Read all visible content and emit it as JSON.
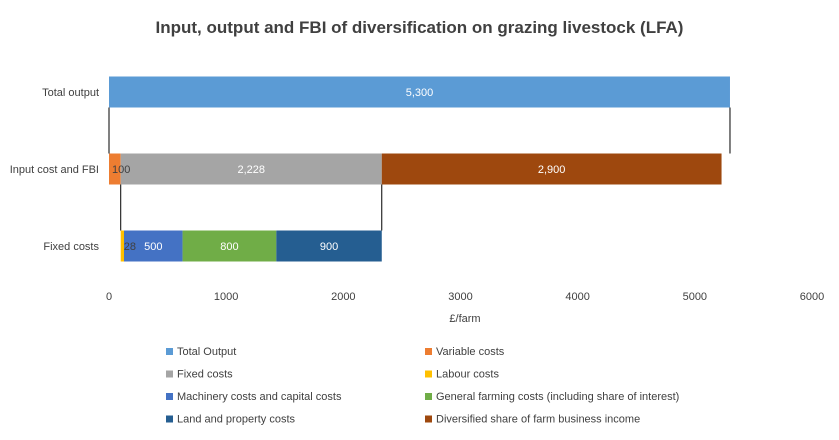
{
  "chart_data": {
    "type": "bar",
    "orientation": "horizontal",
    "stacked": true,
    "title": "Input, output and FBI of diversification on grazing livestock (LFA)",
    "xlabel": "£/farm",
    "ylabel": "",
    "xlim": [
      0,
      6000
    ],
    "xticks": [
      "0",
      "1000",
      "2000",
      "3000",
      "4000",
      "5000",
      "6000"
    ],
    "grid": false,
    "legend_position": "bottom",
    "categories": [
      "Total output",
      "Input cost and FBI",
      "Fixed costs"
    ],
    "bars": [
      {
        "category": "Total output",
        "segments": [
          {
            "series": "Total Output",
            "start": 0,
            "value": 5300,
            "label": "5,300",
            "color": "#5b9bd5",
            "label_color": "#ffffff"
          }
        ]
      },
      {
        "category": "Input cost and FBI",
        "segments": [
          {
            "series": "Variable costs",
            "start": 0,
            "value": 100,
            "label": "100",
            "color": "#ed7d31",
            "label_color": "#404040"
          },
          {
            "series": "Fixed costs",
            "start": 100,
            "value": 2228,
            "label": "2,228",
            "color": "#a5a5a5",
            "label_color": "#ffffff"
          },
          {
            "series": "Diversified share of farm business income",
            "start": 2328,
            "value": 2900,
            "label": "2,900",
            "color": "#9e480e",
            "label_color": "#ffffff"
          }
        ]
      },
      {
        "category": "Fixed costs",
        "segments": [
          {
            "series": "Labour costs",
            "start": 100,
            "value": 28,
            "label": "28",
            "color": "#ffc000",
            "label_color": "#404040"
          },
          {
            "series": "Machinery costs and capital costs",
            "start": 128,
            "value": 500,
            "label": "500",
            "color": "#4472c4",
            "label_color": "#ffffff"
          },
          {
            "series": "General farming costs (including share of interest)",
            "start": 628,
            "value": 800,
            "label": "800",
            "color": "#70ad47",
            "label_color": "#ffffff"
          },
          {
            "series": "Land and property costs",
            "start": 1428,
            "value": 900,
            "label": "900",
            "color": "#255e91",
            "label_color": "#ffffff"
          }
        ]
      }
    ],
    "connectors": [
      {
        "from_category": "Total output",
        "to_category": "Input cost and FBI",
        "x": 0
      },
      {
        "from_category": "Total output",
        "to_category": "Input cost and FBI",
        "x": 5300
      },
      {
        "from_category": "Input cost and FBI",
        "to_category": "Fixed costs",
        "x": 100
      },
      {
        "from_category": "Input cost and FBI",
        "to_category": "Fixed costs",
        "x": 2328
      }
    ],
    "legend": [
      {
        "name": "Total Output",
        "color": "#5b9bd5"
      },
      {
        "name": "Variable costs",
        "color": "#ed7d31"
      },
      {
        "name": "Fixed costs",
        "color": "#a5a5a5"
      },
      {
        "name": "Labour costs",
        "color": "#ffc000"
      },
      {
        "name": "Machinery costs and capital costs",
        "color": "#4472c4"
      },
      {
        "name": "General farming costs (including share of interest)",
        "color": "#70ad47"
      },
      {
        "name": "Land and property costs",
        "color": "#255e91"
      },
      {
        "name": "Diversified share of farm business income",
        "color": "#9e480e"
      }
    ]
  }
}
